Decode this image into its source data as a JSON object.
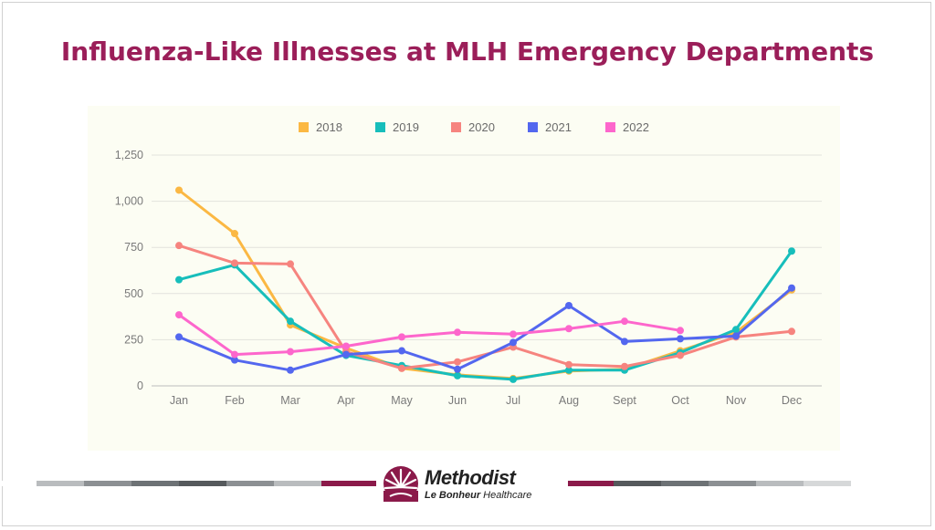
{
  "slide": {
    "title": "Influenza-Like Illnesses at MLH Emergency Departments"
  },
  "logo": {
    "name": "Methodist",
    "sub_bold": "Le Bonheur",
    "sub_rest": " Healthcare"
  },
  "chart_data": {
    "type": "line",
    "title": "",
    "xlabel": "",
    "ylabel": "",
    "categories": [
      "Jan",
      "Feb",
      "Mar",
      "Apr",
      "May",
      "Jun",
      "Jul",
      "Aug",
      "Sept",
      "Oct",
      "Nov",
      "Dec"
    ],
    "yticks": [
      "0",
      "250",
      "500",
      "750",
      "1,000",
      "1,250"
    ],
    "ylim": [
      0,
      1250
    ],
    "grid": true,
    "legend_position": "top",
    "series": [
      {
        "name": "2018",
        "color": "#fbb843",
        "values": [
          1060,
          825,
          330,
          205,
          95,
          60,
          40,
          80,
          90,
          190,
          290,
          520
        ]
      },
      {
        "name": "2019",
        "color": "#17bebb",
        "values": [
          575,
          655,
          350,
          165,
          110,
          55,
          35,
          85,
          85,
          180,
          305,
          730
        ]
      },
      {
        "name": "2020",
        "color": "#f6847f",
        "values": [
          760,
          665,
          660,
          185,
          95,
          130,
          210,
          115,
          105,
          165,
          265,
          295
        ]
      },
      {
        "name": "2021",
        "color": "#5367ef",
        "values": [
          265,
          140,
          85,
          170,
          190,
          90,
          235,
          435,
          240,
          255,
          270,
          530
        ]
      },
      {
        "name": "2022",
        "color": "#fd66cc",
        "values": [
          385,
          170,
          185,
          215,
          265,
          290,
          280,
          310,
          350,
          300,
          null,
          null
        ]
      }
    ]
  }
}
